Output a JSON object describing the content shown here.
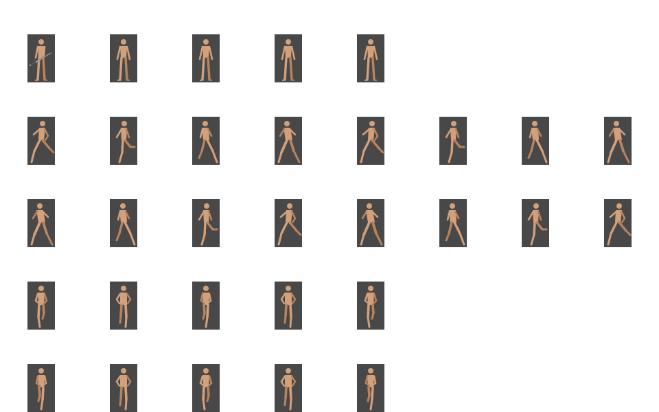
{
  "sprite_sheet": {
    "colors": {
      "background": "#ffffff",
      "frame": "#484848",
      "skin": "#d2a07a",
      "skin_shadow": "#b8845e",
      "blade": "#c8ccd2",
      "blade_dark": "#5a5e66"
    },
    "rows": [
      {
        "name": "idle",
        "frames": [
          {
            "pose": "stand-sword",
            "sword": true
          },
          {
            "pose": "stand"
          },
          {
            "pose": "stand"
          },
          {
            "pose": "stand"
          },
          {
            "pose": "stand"
          }
        ]
      },
      {
        "name": "run-side-a",
        "frames": [
          {
            "pose": "run-1"
          },
          {
            "pose": "run-2"
          },
          {
            "pose": "run-3"
          },
          {
            "pose": "run-4"
          },
          {
            "pose": "run-1"
          },
          {
            "pose": "run-2"
          },
          {
            "pose": "run-3"
          },
          {
            "pose": "run-4"
          }
        ]
      },
      {
        "name": "run-side-b",
        "frames": [
          {
            "pose": "run-4"
          },
          {
            "pose": "run-3"
          },
          {
            "pose": "run-2"
          },
          {
            "pose": "run-1"
          },
          {
            "pose": "run-4"
          },
          {
            "pose": "run-3"
          },
          {
            "pose": "run-2"
          },
          {
            "pose": "run-1"
          }
        ]
      },
      {
        "name": "run-front-a",
        "frames": [
          {
            "pose": "front-1"
          },
          {
            "pose": "front-2"
          },
          {
            "pose": "front-3"
          },
          {
            "pose": "front-2"
          },
          {
            "pose": "front-1"
          }
        ]
      },
      {
        "name": "run-front-b",
        "frames": [
          {
            "pose": "front-3"
          },
          {
            "pose": "front-2"
          },
          {
            "pose": "front-1"
          },
          {
            "pose": "front-2"
          },
          {
            "pose": "front-3"
          }
        ]
      }
    ]
  }
}
